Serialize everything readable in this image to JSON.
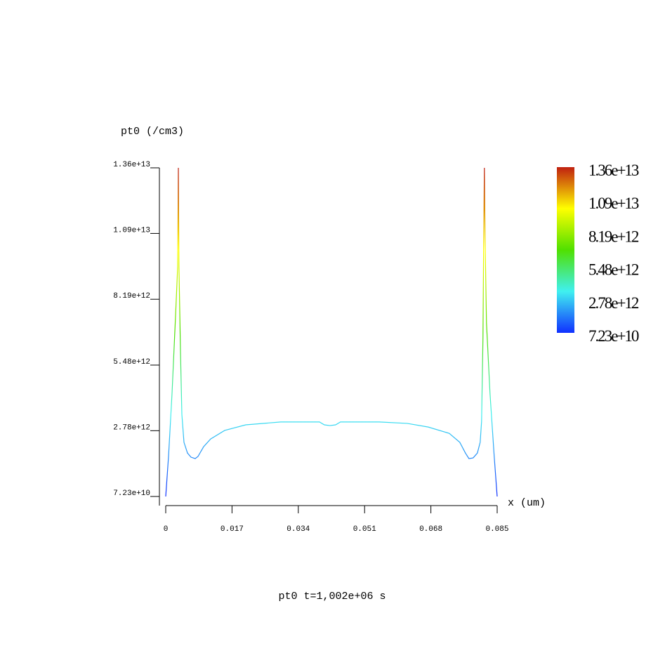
{
  "chart_data": {
    "type": "line",
    "title": "pt0 t=1,002e+06 s",
    "ylabel": "pt0 (/cm3)",
    "xlabel": "x (um)",
    "x": [
      0,
      0.00072,
      0.00162,
      0.00252,
      0.00306,
      0.00324,
      0.0034,
      0.00378,
      0.00414,
      0.00468,
      0.00558,
      0.00648,
      0.00756,
      0.00828,
      0.00972,
      0.01152,
      0.01512,
      0.02052,
      0.02952,
      0.03942,
      0.04068,
      0.04212,
      0.04356,
      0.04482,
      0.05472,
      0.06192,
      0.06732,
      0.07272,
      0.07542,
      0.07686,
      0.07776,
      0.07884,
      0.07992,
      0.08064,
      0.081,
      0.08136,
      0.08154,
      0.08172,
      0.0819,
      0.08226,
      0.08316,
      0.08424,
      0.085
    ],
    "values": [
      72300000000.0,
      1720000000000.0,
      4320000000000.0,
      7500000000000.0,
      9520000000000.0,
      13600000000000.0,
      9520000000000.0,
      6050000000000.0,
      3450000000000.0,
      2300000000000.0,
      1860000000000.0,
      1690000000000.0,
      1630000000000.0,
      1720000000000.0,
      2120000000000.0,
      2440000000000.0,
      2790000000000.0,
      3020000000000.0,
      3140000000000.0,
      3140000000000.0,
      3020000000000.0,
      2990000000000.0,
      3020000000000.0,
      3140000000000.0,
      3140000000000.0,
      3080000000000.0,
      2930000000000.0,
      2670000000000.0,
      2300000000000.0,
      1860000000000.0,
      1630000000000.0,
      1660000000000.0,
      1860000000000.0,
      2300000000000.0,
      3160000000000.0,
      6630000000000.0,
      10700000000000.0,
      13600000000000.0,
      10700000000000.0,
      7210000000000.0,
      4320000000000.0,
      1720000000000.0,
      72300000000.0
    ],
    "colormap": [
      "#1030ff",
      "#40f0f0",
      "#50e000",
      "#ffff00",
      "#c02010"
    ],
    "xlim": [
      0,
      0.085
    ],
    "xticks": [
      0,
      0.017,
      0.034,
      0.051,
      0.068,
      0.085
    ],
    "ylim": [
      72300000000.0,
      13600000000000.0
    ],
    "yticks": [
      {
        "value": 72300000000.0,
        "label": "7.23e+10"
      },
      {
        "value": 2780000000000.0,
        "label": "2.78e+12"
      },
      {
        "value": 5480000000000.0,
        "label": "5.48e+12"
      },
      {
        "value": 8190000000000.0,
        "label": "8.19e+12"
      },
      {
        "value": 10900000000000.0,
        "label": "1.09e+13"
      },
      {
        "value": 13600000000000.0,
        "label": "1.36e+13"
      }
    ],
    "colorbar": {
      "lim": [
        72300000000.0,
        13600000000000.0
      ],
      "ticks": [
        {
          "value": 72300000000.0,
          "label": "7.23e+10"
        },
        {
          "value": 2780000000000.0,
          "label": "2.78e+12"
        },
        {
          "value": 5480000000000.0,
          "label": "5.48e+12"
        },
        {
          "value": 8190000000000.0,
          "label": "8.19e+12"
        },
        {
          "value": 10900000000000.0,
          "label": "1.09e+13"
        },
        {
          "value": 13600000000000.0,
          "label": "1.36e+13"
        }
      ]
    }
  }
}
